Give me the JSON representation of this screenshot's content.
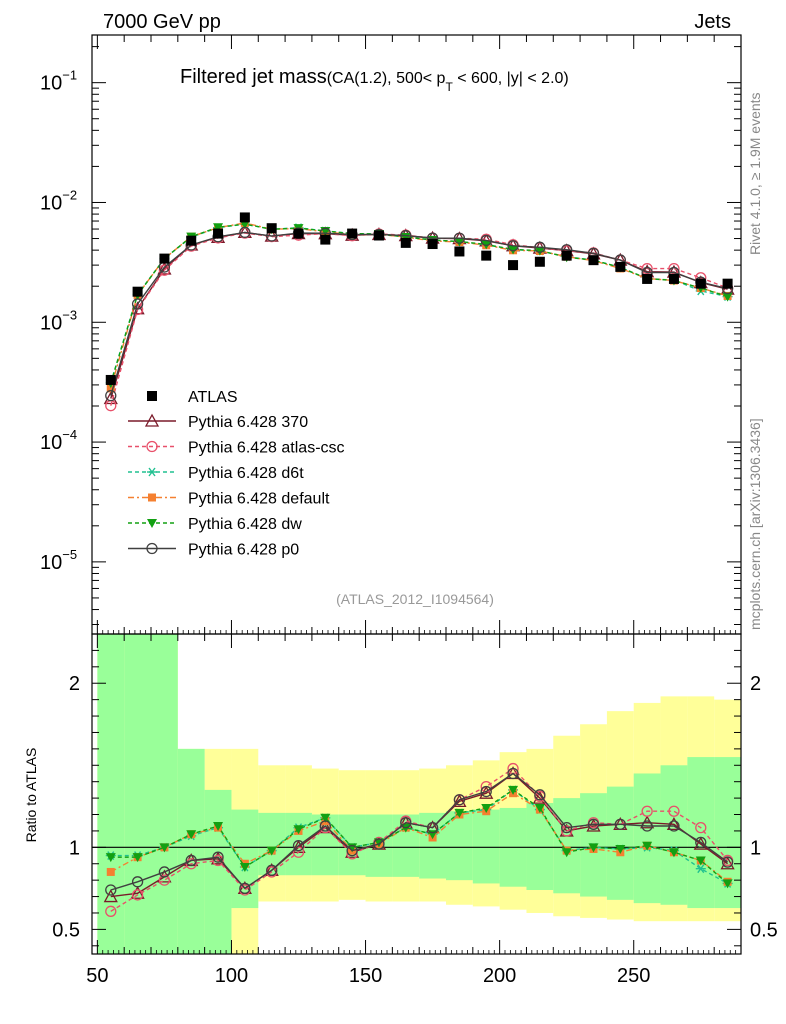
{
  "header": {
    "left": "7000 GeV pp",
    "right": "Jets"
  },
  "side_labels": {
    "rivet": "Rivet 4.1.0, ≥ 1.9M events",
    "mcplots": "mcplots.cern.ch [arXiv:1306.3436]"
  },
  "chart_data": {
    "type": "line",
    "title": "Filtered jet mass",
    "subtitle_parts": {
      "prefix": "(CA(1.2), 500< p",
      "subscript": "T",
      "suffix": " < 600, |y| < 2.0)"
    },
    "analysis_id": "(ATLAS_2012_I1094564)",
    "x": [
      55,
      65,
      75,
      85,
      95,
      105,
      115,
      125,
      135,
      145,
      155,
      165,
      175,
      185,
      195,
      205,
      215,
      225,
      235,
      245,
      255,
      265,
      275,
      285
    ],
    "xlim": [
      48,
      290
    ],
    "xticks": [
      50,
      100,
      150,
      200,
      250
    ],
    "main": {
      "yscale": "log",
      "ylim": [
        2.5e-06,
        0.25
      ],
      "yticks": [
        {
          "value": 0.1,
          "base": "10",
          "exp": "−1"
        },
        {
          "value": 0.01,
          "base": "10",
          "exp": "−2"
        },
        {
          "value": 0.001,
          "base": "10",
          "exp": "−3"
        },
        {
          "value": 0.0001,
          "base": "10",
          "exp": "−4"
        },
        {
          "value": 1e-05,
          "base": "10",
          "exp": "−5"
        }
      ]
    },
    "ratio": {
      "ylabel": "Ratio to ATLAS",
      "ylim": [
        0.35,
        2.3
      ],
      "yticks": [
        {
          "value": 2,
          "label": "2"
        },
        {
          "value": 1,
          "label": "1"
        },
        {
          "value": 0.5,
          "label": "0.5"
        }
      ],
      "band_outer_low": [
        0.25,
        0.25,
        0.25,
        0.35,
        0.35,
        0.35,
        0.67,
        0.67,
        0.67,
        0.68,
        0.67,
        0.67,
        0.67,
        0.65,
        0.64,
        0.62,
        0.6,
        0.58,
        0.57,
        0.56,
        0.55,
        0.55,
        0.55,
        0.55
      ],
      "band_outer_high": [
        2.4,
        2.4,
        2.4,
        1.6,
        1.6,
        1.6,
        1.5,
        1.5,
        1.48,
        1.47,
        1.47,
        1.47,
        1.48,
        1.5,
        1.53,
        1.58,
        1.6,
        1.68,
        1.75,
        1.83,
        1.88,
        1.92,
        1.92,
        1.9
      ],
      "band_inner_low": [
        0.25,
        0.25,
        0.25,
        0.35,
        0.35,
        0.63,
        0.83,
        0.83,
        0.83,
        0.83,
        0.82,
        0.82,
        0.81,
        0.8,
        0.78,
        0.76,
        0.74,
        0.72,
        0.7,
        0.68,
        0.66,
        0.65,
        0.63,
        0.63
      ],
      "band_inner_high": [
        2.4,
        2.4,
        2.4,
        1.6,
        1.35,
        1.23,
        1.21,
        1.21,
        1.2,
        1.2,
        1.2,
        1.2,
        1.21,
        1.22,
        1.23,
        1.24,
        1.27,
        1.3,
        1.33,
        1.37,
        1.45,
        1.5,
        1.55,
        1.55
      ]
    },
    "data": {
      "name": "ATLAS",
      "color": "#000000",
      "values": [
        0.00033,
        0.0018,
        0.0034,
        0.0048,
        0.0055,
        0.0075,
        0.0061,
        0.0055,
        0.0049,
        0.0055,
        0.0053,
        0.0046,
        0.0045,
        0.0039,
        0.0036,
        0.003,
        0.0032,
        0.0036,
        0.0033,
        0.0029,
        0.0023,
        0.0023,
        0.0021,
        0.0021
      ]
    },
    "series": [
      {
        "name": "Pythia 6.428 370",
        "color": "#7a1a2a",
        "dash": "",
        "marker": "triangle-open",
        "ratio": [
          0.7,
          0.72,
          0.82,
          0.92,
          0.93,
          0.75,
          0.86,
          1.0,
          1.12,
          0.97,
          1.02,
          1.15,
          1.12,
          1.28,
          1.33,
          1.45,
          1.3,
          1.1,
          1.13,
          1.14,
          1.15,
          1.14,
          1.02,
          0.9
        ]
      },
      {
        "name": "Pythia 6.428 atlas-csc",
        "color": "#e8506a",
        "dash": "4 3",
        "marker": "circle-open",
        "ratio": [
          0.61,
          0.71,
          0.8,
          0.9,
          0.92,
          0.74,
          0.85,
          0.97,
          1.12,
          0.96,
          1.03,
          1.16,
          1.12,
          1.29,
          1.37,
          1.48,
          1.31,
          1.1,
          1.15,
          1.14,
          1.22,
          1.22,
          1.12,
          0.92
        ]
      },
      {
        "name": "Pythia 6.428 d6t",
        "color": "#20c090",
        "dash": "4 3",
        "marker": "asterisk",
        "ratio": [
          0.95,
          0.95,
          1.0,
          1.07,
          1.12,
          0.88,
          0.98,
          1.12,
          1.18,
          1.0,
          1.03,
          1.12,
          1.08,
          1.21,
          1.23,
          1.35,
          1.23,
          0.98,
          1.0,
          0.99,
          1.0,
          0.98,
          0.87,
          0.78
        ]
      },
      {
        "name": "Pythia 6.428 default",
        "color": "#f58030",
        "dash": "6 3 2 3",
        "marker": "square-filled",
        "ratio": [
          0.85,
          0.94,
          1.0,
          1.08,
          1.12,
          0.9,
          0.98,
          1.1,
          1.16,
          0.98,
          1.02,
          1.12,
          1.06,
          1.2,
          1.22,
          1.33,
          1.23,
          0.98,
          0.99,
          0.97,
          1.01,
          0.97,
          0.92,
          0.79
        ]
      },
      {
        "name": "Pythia 6.428 dw",
        "color": "#12a012",
        "dash": "4 3",
        "marker": "triangle-down-filled",
        "ratio": [
          0.94,
          0.94,
          1.0,
          1.08,
          1.13,
          0.88,
          0.98,
          1.11,
          1.18,
          1.0,
          1.03,
          1.12,
          1.08,
          1.21,
          1.24,
          1.35,
          1.24,
          0.97,
          1.0,
          0.99,
          1.01,
          0.97,
          0.92,
          0.78
        ]
      },
      {
        "name": "Pythia 6.428 p0",
        "color": "#404040",
        "dash": "",
        "marker": "circle-open",
        "ratio": [
          0.74,
          0.79,
          0.85,
          0.92,
          0.94,
          0.75,
          0.86,
          1.01,
          1.13,
          0.98,
          1.02,
          1.15,
          1.12,
          1.29,
          1.34,
          1.45,
          1.32,
          1.12,
          1.14,
          1.14,
          1.13,
          1.13,
          1.03,
          0.91
        ]
      }
    ]
  }
}
